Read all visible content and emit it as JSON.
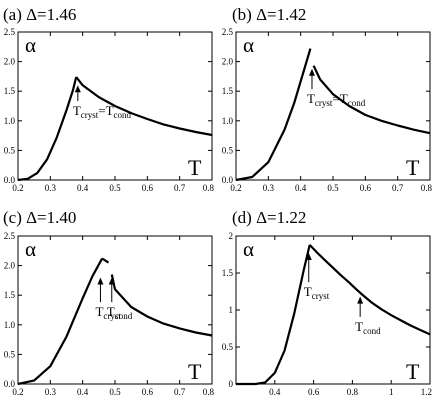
{
  "chart_data": [
    {
      "type": "line",
      "title": "(a) Δ=1.46",
      "xlabel": "T",
      "ylabel": "α",
      "xlim": [
        0.2,
        0.8
      ],
      "ylim": [
        0,
        2.5
      ],
      "xticks": [
        "0.2",
        "0.3",
        "0.4",
        "0.5",
        "0.6",
        "0.7",
        "0.8"
      ],
      "yticks": [
        "0.0",
        "0.5",
        "1.0",
        "1.5",
        "2.0",
        "2.5"
      ],
      "series": [
        {
          "x": [
            0.2,
            0.23,
            0.26,
            0.29,
            0.32,
            0.35,
            0.37,
            0.38
          ],
          "y": [
            0,
            0.02,
            0.12,
            0.35,
            0.72,
            1.18,
            1.52,
            1.74
          ]
        },
        {
          "x": [
            0.38,
            0.4,
            0.45,
            0.5,
            0.55,
            0.6,
            0.65,
            0.7,
            0.75,
            0.8
          ],
          "y": [
            1.74,
            1.6,
            1.4,
            1.25,
            1.13,
            1.03,
            0.94,
            0.87,
            0.81,
            0.76
          ]
        }
      ],
      "annotations": [
        {
          "x": 0.385,
          "y": 1.3,
          "arrow_to": 1.6,
          "parts": [
            {
              "t": "T",
              "sub": false
            },
            {
              "t": "cryst",
              "sub": true
            },
            {
              "t": "=T",
              "sub": false
            },
            {
              "t": "cond",
              "sub": true
            }
          ]
        }
      ],
      "grid": false
    },
    {
      "type": "line",
      "title": "(b) Δ=1.42",
      "xlabel": "T",
      "ylabel": "α",
      "xlim": [
        0.2,
        0.8
      ],
      "ylim": [
        0,
        2.5
      ],
      "xticks": [
        "0.2",
        "0.3",
        "0.4",
        "0.5",
        "0.6",
        "0.7",
        "0.8"
      ],
      "yticks": [
        "0.0",
        "0.5",
        "1.0",
        "1.5",
        "2.0",
        "2.5"
      ],
      "series": [
        {
          "x": [
            0.2,
            0.25,
            0.3,
            0.35,
            0.38,
            0.41,
            0.43
          ],
          "y": [
            0,
            0.05,
            0.3,
            0.85,
            1.3,
            1.85,
            2.22
          ]
        },
        {
          "x": [
            0.44,
            0.46,
            0.5,
            0.55,
            0.6,
            0.65,
            0.7,
            0.75,
            0.8
          ],
          "y": [
            1.93,
            1.7,
            1.45,
            1.25,
            1.1,
            1.0,
            0.92,
            0.85,
            0.79
          ]
        }
      ],
      "annotations": [
        {
          "x": 0.435,
          "y": 1.5,
          "arrow_to": 1.88,
          "parts": [
            {
              "t": "T",
              "sub": false
            },
            {
              "t": "cryst",
              "sub": true
            },
            {
              "t": "=T",
              "sub": false
            },
            {
              "t": "cond",
              "sub": true
            }
          ]
        }
      ],
      "grid": false
    },
    {
      "type": "line",
      "title": "(c) Δ=1.40",
      "xlabel": "T",
      "ylabel": "α",
      "xlim": [
        0.2,
        0.8
      ],
      "ylim": [
        0,
        2.5
      ],
      "xticks": [
        "0.2",
        "0.3",
        "0.4",
        "0.5",
        "0.6",
        "0.7",
        "0.8"
      ],
      "yticks": [
        "0.0",
        "0.5",
        "1.0",
        "1.5",
        "2.0",
        "2.5"
      ],
      "series": [
        {
          "x": [
            0.2,
            0.25,
            0.3,
            0.35,
            0.4,
            0.43,
            0.46
          ],
          "y": [
            0,
            0.06,
            0.3,
            0.8,
            1.45,
            1.82,
            2.12
          ]
        },
        {
          "x": [
            0.46,
            0.48
          ],
          "y": [
            2.12,
            2.05
          ]
        },
        {
          "x": [
            0.49,
            0.5,
            0.55,
            0.6,
            0.65,
            0.7,
            0.75,
            0.8
          ],
          "y": [
            1.85,
            1.6,
            1.3,
            1.14,
            1.02,
            0.94,
            0.87,
            0.82
          ]
        }
      ],
      "annotations": [
        {
          "x": 0.455,
          "y": 1.35,
          "arrow_to": 1.8,
          "parts": [
            {
              "t": "T",
              "sub": false
            },
            {
              "t": "cryst",
              "sub": true
            }
          ]
        },
        {
          "x": 0.49,
          "y": 1.35,
          "arrow_to": 1.8,
          "parts": [
            {
              "t": "T",
              "sub": false
            },
            {
              "t": "cond",
              "sub": true
            }
          ]
        }
      ],
      "grid": false
    },
    {
      "type": "line",
      "title": "(d) Δ=1.22",
      "xlabel": "T",
      "ylabel": "α",
      "xlim": [
        0.2,
        1.2
      ],
      "ylim": [
        0,
        2
      ],
      "xticks": [
        "0.4",
        "0.6",
        "0.8",
        "1",
        "1.2"
      ],
      "xtick_values": [
        0.4,
        0.6,
        0.8,
        1.0,
        1.2
      ],
      "yticks": [
        "0",
        "0.5",
        "1",
        "1.5",
        "2"
      ],
      "series": [
        {
          "x": [
            0.2,
            0.3,
            0.35,
            0.4,
            0.45,
            0.5,
            0.55,
            0.58
          ],
          "y": [
            0,
            0,
            0.02,
            0.15,
            0.45,
            0.95,
            1.55,
            1.88
          ]
        },
        {
          "x": [
            0.58,
            0.62,
            0.66,
            0.7,
            0.74,
            0.78,
            0.82,
            0.85,
            0.9,
            0.95,
            1.0,
            1.05,
            1.1,
            1.15,
            1.2
          ],
          "y": [
            1.88,
            1.77,
            1.67,
            1.57,
            1.47,
            1.38,
            1.28,
            1.21,
            1.1,
            1.01,
            0.93,
            0.86,
            0.79,
            0.73,
            0.67
          ]
        }
      ],
      "annotations": [
        {
          "x": 0.575,
          "y": 1.35,
          "arrow_to": 1.77,
          "parts": [
            {
              "t": "T",
              "sub": false
            },
            {
              "t": "cryst",
              "sub": true
            }
          ]
        },
        {
          "x": 0.84,
          "y": 0.88,
          "arrow_to": 1.18,
          "parts": [
            {
              "t": "T",
              "sub": false
            },
            {
              "t": "cond",
              "sub": true
            }
          ]
        }
      ],
      "grid": false
    }
  ]
}
